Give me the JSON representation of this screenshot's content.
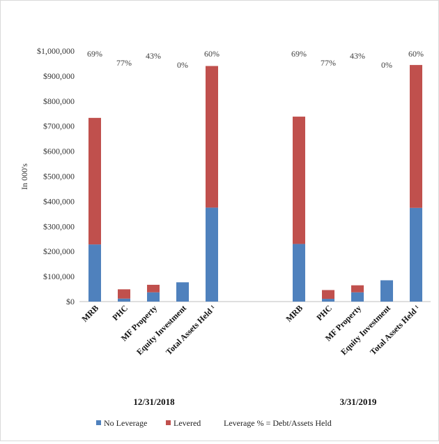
{
  "chart_data": {
    "type": "bar",
    "stacked": true,
    "ylabel": "In 000's",
    "ylim": [
      0,
      1000000
    ],
    "yticks": [
      "$0",
      "$100,000",
      "$200,000",
      "$300,000",
      "$400,000",
      "$500,000",
      "$600,000",
      "$700,000",
      "$800,000",
      "$900,000",
      "$1,000,000"
    ],
    "ytick_values": [
      0,
      100000,
      200000,
      300000,
      400000,
      500000,
      600000,
      700000,
      800000,
      900000,
      1000000
    ],
    "grid": false,
    "groups": [
      {
        "name": "12/31/2018",
        "categories": [
          "MRB",
          "PHC",
          "MF Property",
          "Equity Investment",
          "Total Assets Held ¹"
        ],
        "no_leverage": [
          228000,
          12000,
          37000,
          77000,
          375000
        ],
        "levered": [
          505000,
          37000,
          30000,
          0,
          565000
        ],
        "leverage_pct": [
          "69%",
          "77%",
          "43%",
          "0%",
          "60%"
        ]
      },
      {
        "name": "3/31/2019",
        "categories": [
          "MRB",
          "PHC",
          "MF Property",
          "Equity Investment",
          "Total Assets Held ¹"
        ],
        "no_leverage": [
          230000,
          11000,
          37000,
          85000,
          374000
        ],
        "levered": [
          508000,
          35000,
          28000,
          0,
          570000
        ],
        "leverage_pct": [
          "69%",
          "77%",
          "43%",
          "0%",
          "60%"
        ]
      }
    ],
    "series": [
      {
        "name": "No Leverage",
        "color": "#4f81bd"
      },
      {
        "name": "Levered",
        "color": "#c0504d"
      }
    ],
    "legend": {
      "position": "bottom",
      "note": "Leverage % = Debt/Assets Held"
    }
  }
}
